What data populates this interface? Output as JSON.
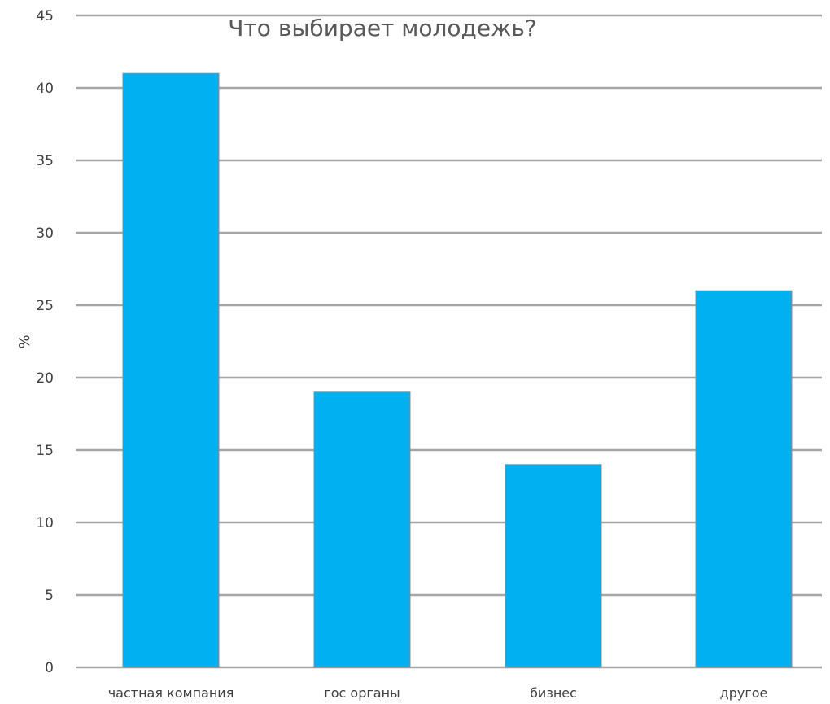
{
  "chart_data": {
    "type": "bar",
    "title": "Что выбирает молодежь?",
    "xlabel": "",
    "ylabel": "%",
    "categories": [
      "частная компания",
      "гос органы",
      "бизнес",
      "другое"
    ],
    "values": [
      41,
      19,
      14,
      26
    ],
    "ylim": [
      0,
      45
    ],
    "yticks": [
      0,
      5,
      10,
      15,
      20,
      25,
      30,
      35,
      40,
      45
    ],
    "grid": true,
    "legend": "none",
    "bar_color": "#00B0F0",
    "bar_edge_color": "#8c8c8c",
    "grid_color": "#a6a6a6"
  }
}
